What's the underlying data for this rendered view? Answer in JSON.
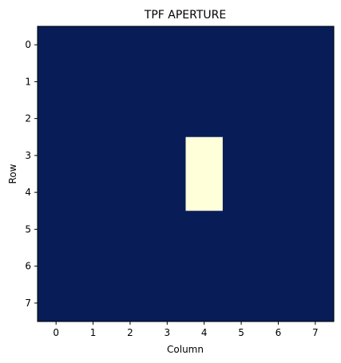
{
  "chart_data": {
    "type": "heatmap",
    "title": "TPF APERTURE",
    "xlabel": "Column",
    "ylabel": "Row",
    "x_ticks": [
      "0",
      "1",
      "2",
      "3",
      "4",
      "5",
      "6",
      "7"
    ],
    "y_ticks": [
      "0",
      "1",
      "2",
      "3",
      "4",
      "5",
      "6",
      "7"
    ],
    "x_range": [
      -0.5,
      7.5
    ],
    "y_range": [
      -0.5,
      7.5
    ],
    "y_axis_inverted": true,
    "grid": false,
    "colormap": "YlGnBu",
    "colors": {
      "low": "#081d58",
      "high": "#ffffd9"
    },
    "values": [
      [
        0,
        0,
        0,
        0,
        0,
        0,
        0,
        0
      ],
      [
        0,
        0,
        0,
        0,
        0,
        0,
        0,
        0
      ],
      [
        0,
        0,
        0,
        0,
        0,
        0,
        0,
        0
      ],
      [
        0,
        0,
        0,
        0,
        1,
        0,
        0,
        0
      ],
      [
        0,
        0,
        0,
        0,
        1,
        0,
        0,
        0
      ],
      [
        0,
        0,
        0,
        0,
        0,
        0,
        0,
        0
      ],
      [
        0,
        0,
        0,
        0,
        0,
        0,
        0,
        0
      ],
      [
        0,
        0,
        0,
        0,
        0,
        0,
        0,
        0
      ]
    ]
  }
}
